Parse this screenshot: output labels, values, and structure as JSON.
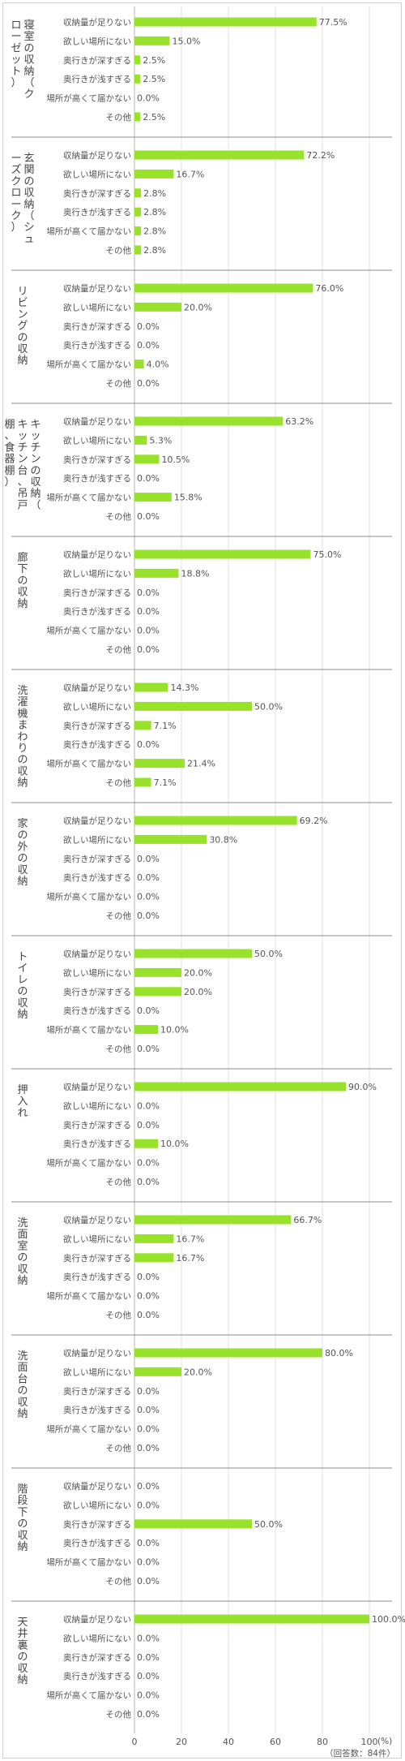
{
  "chart_data": {
    "type": "bar",
    "orientation": "horizontal",
    "options": [
      "収納量が足りない",
      "欲しい場所にない",
      "奥行きが深すぎる",
      "奥行きが浅すぎる",
      "場所が高くて届かない",
      "その他"
    ],
    "groups": [
      {
        "name": "寝室の収納（クローゼット）",
        "values": [
          77.5,
          15.0,
          2.5,
          2.5,
          0.0,
          2.5
        ]
      },
      {
        "name": "玄関の収納（シューズクローク）",
        "values": [
          72.2,
          16.7,
          2.8,
          2.8,
          2.8,
          2.8
        ]
      },
      {
        "name": "リビングの収納",
        "values": [
          76.0,
          20.0,
          0.0,
          0.0,
          4.0,
          0.0
        ]
      },
      {
        "name": "キッチンの収納（キッチン台、吊戸棚、食器棚）",
        "values": [
          63.2,
          5.3,
          10.5,
          0.0,
          15.8,
          0.0
        ]
      },
      {
        "name": "廊下の収納",
        "values": [
          75.0,
          18.8,
          0.0,
          0.0,
          0.0,
          0.0
        ]
      },
      {
        "name": "洗濯機まわりの収納",
        "values": [
          14.3,
          50.0,
          7.1,
          0.0,
          21.4,
          7.1
        ]
      },
      {
        "name": "家の外の収納",
        "values": [
          69.2,
          30.8,
          0.0,
          0.0,
          0.0,
          0.0
        ]
      },
      {
        "name": "トイレの収納",
        "values": [
          50.0,
          20.0,
          20.0,
          0.0,
          10.0,
          0.0
        ]
      },
      {
        "name": "押入れ",
        "values": [
          90.0,
          0.0,
          0.0,
          10.0,
          0.0,
          0.0
        ]
      },
      {
        "name": "洗面室の収納",
        "values": [
          66.7,
          16.7,
          16.7,
          0.0,
          0.0,
          0.0
        ]
      },
      {
        "name": "洗面台の収納",
        "values": [
          80.0,
          20.0,
          0.0,
          0.0,
          0.0,
          0.0
        ]
      },
      {
        "name": "階段下の収納",
        "values": [
          0.0,
          0.0,
          50.0,
          0.0,
          0.0,
          0.0
        ]
      },
      {
        "name": "天井裏の収納",
        "values": [
          100.0,
          0.0,
          0.0,
          0.0,
          0.0,
          0.0
        ]
      }
    ],
    "value_labels": [
      [
        "77.5%",
        "15.0%",
        "2.5%",
        "2.5%",
        "0.0%",
        "2.5%"
      ],
      [
        "72.2%",
        "16.7%",
        "2.8%",
        "2.8%",
        "2.8%",
        "2.8%"
      ],
      [
        "76.0%",
        "20.0%",
        "0.0%",
        "0.0%",
        "4.0%",
        "0.0%"
      ],
      [
        "63.2%",
        "5.3%",
        "10.5%",
        "0.0%",
        "15.8%",
        "0.0%"
      ],
      [
        "75.0%",
        "18.8%",
        "0.0%",
        "0.0%",
        "0.0%",
        "0.0%"
      ],
      [
        "14.3%",
        "50.0%",
        "7.1%",
        "0.0%",
        "21.4%",
        "7.1%"
      ],
      [
        "69.2%",
        "30.8%",
        "0.0%",
        "0.0%",
        "0.0%",
        "0.0%"
      ],
      [
        "50.0%",
        "20.0%",
        "20.0%",
        "0.0%",
        "10.0%",
        "0.0%"
      ],
      [
        "90.0%",
        "0.0%",
        "0.0%",
        "10.0%",
        "0.0%",
        "0.0%"
      ],
      [
        "66.7%",
        "16.7%",
        "16.7%",
        "0.0%",
        "0.0%",
        "0.0%"
      ],
      [
        "80.0%",
        "20.0%",
        "0.0%",
        "0.0%",
        "0.0%",
        "0.0%"
      ],
      [
        "0.0%",
        "0.0%",
        "50.0%",
        "0.0%",
        "0.0%",
        "0.0%"
      ],
      [
        "100.0%",
        "0.0%",
        "0.0%",
        "0.0%",
        "0.0%",
        "0.0%"
      ]
    ],
    "xlim": [
      0,
      100
    ],
    "x_ticks": [
      "0",
      "20",
      "40",
      "60",
      "80",
      "100"
    ],
    "x_unit": "(%)",
    "note": "（回答数：84件）",
    "bar_color": "#99e22b",
    "separator_color": "#8c8c8c",
    "gridline_color": "#e2e2e2",
    "grid": true
  }
}
